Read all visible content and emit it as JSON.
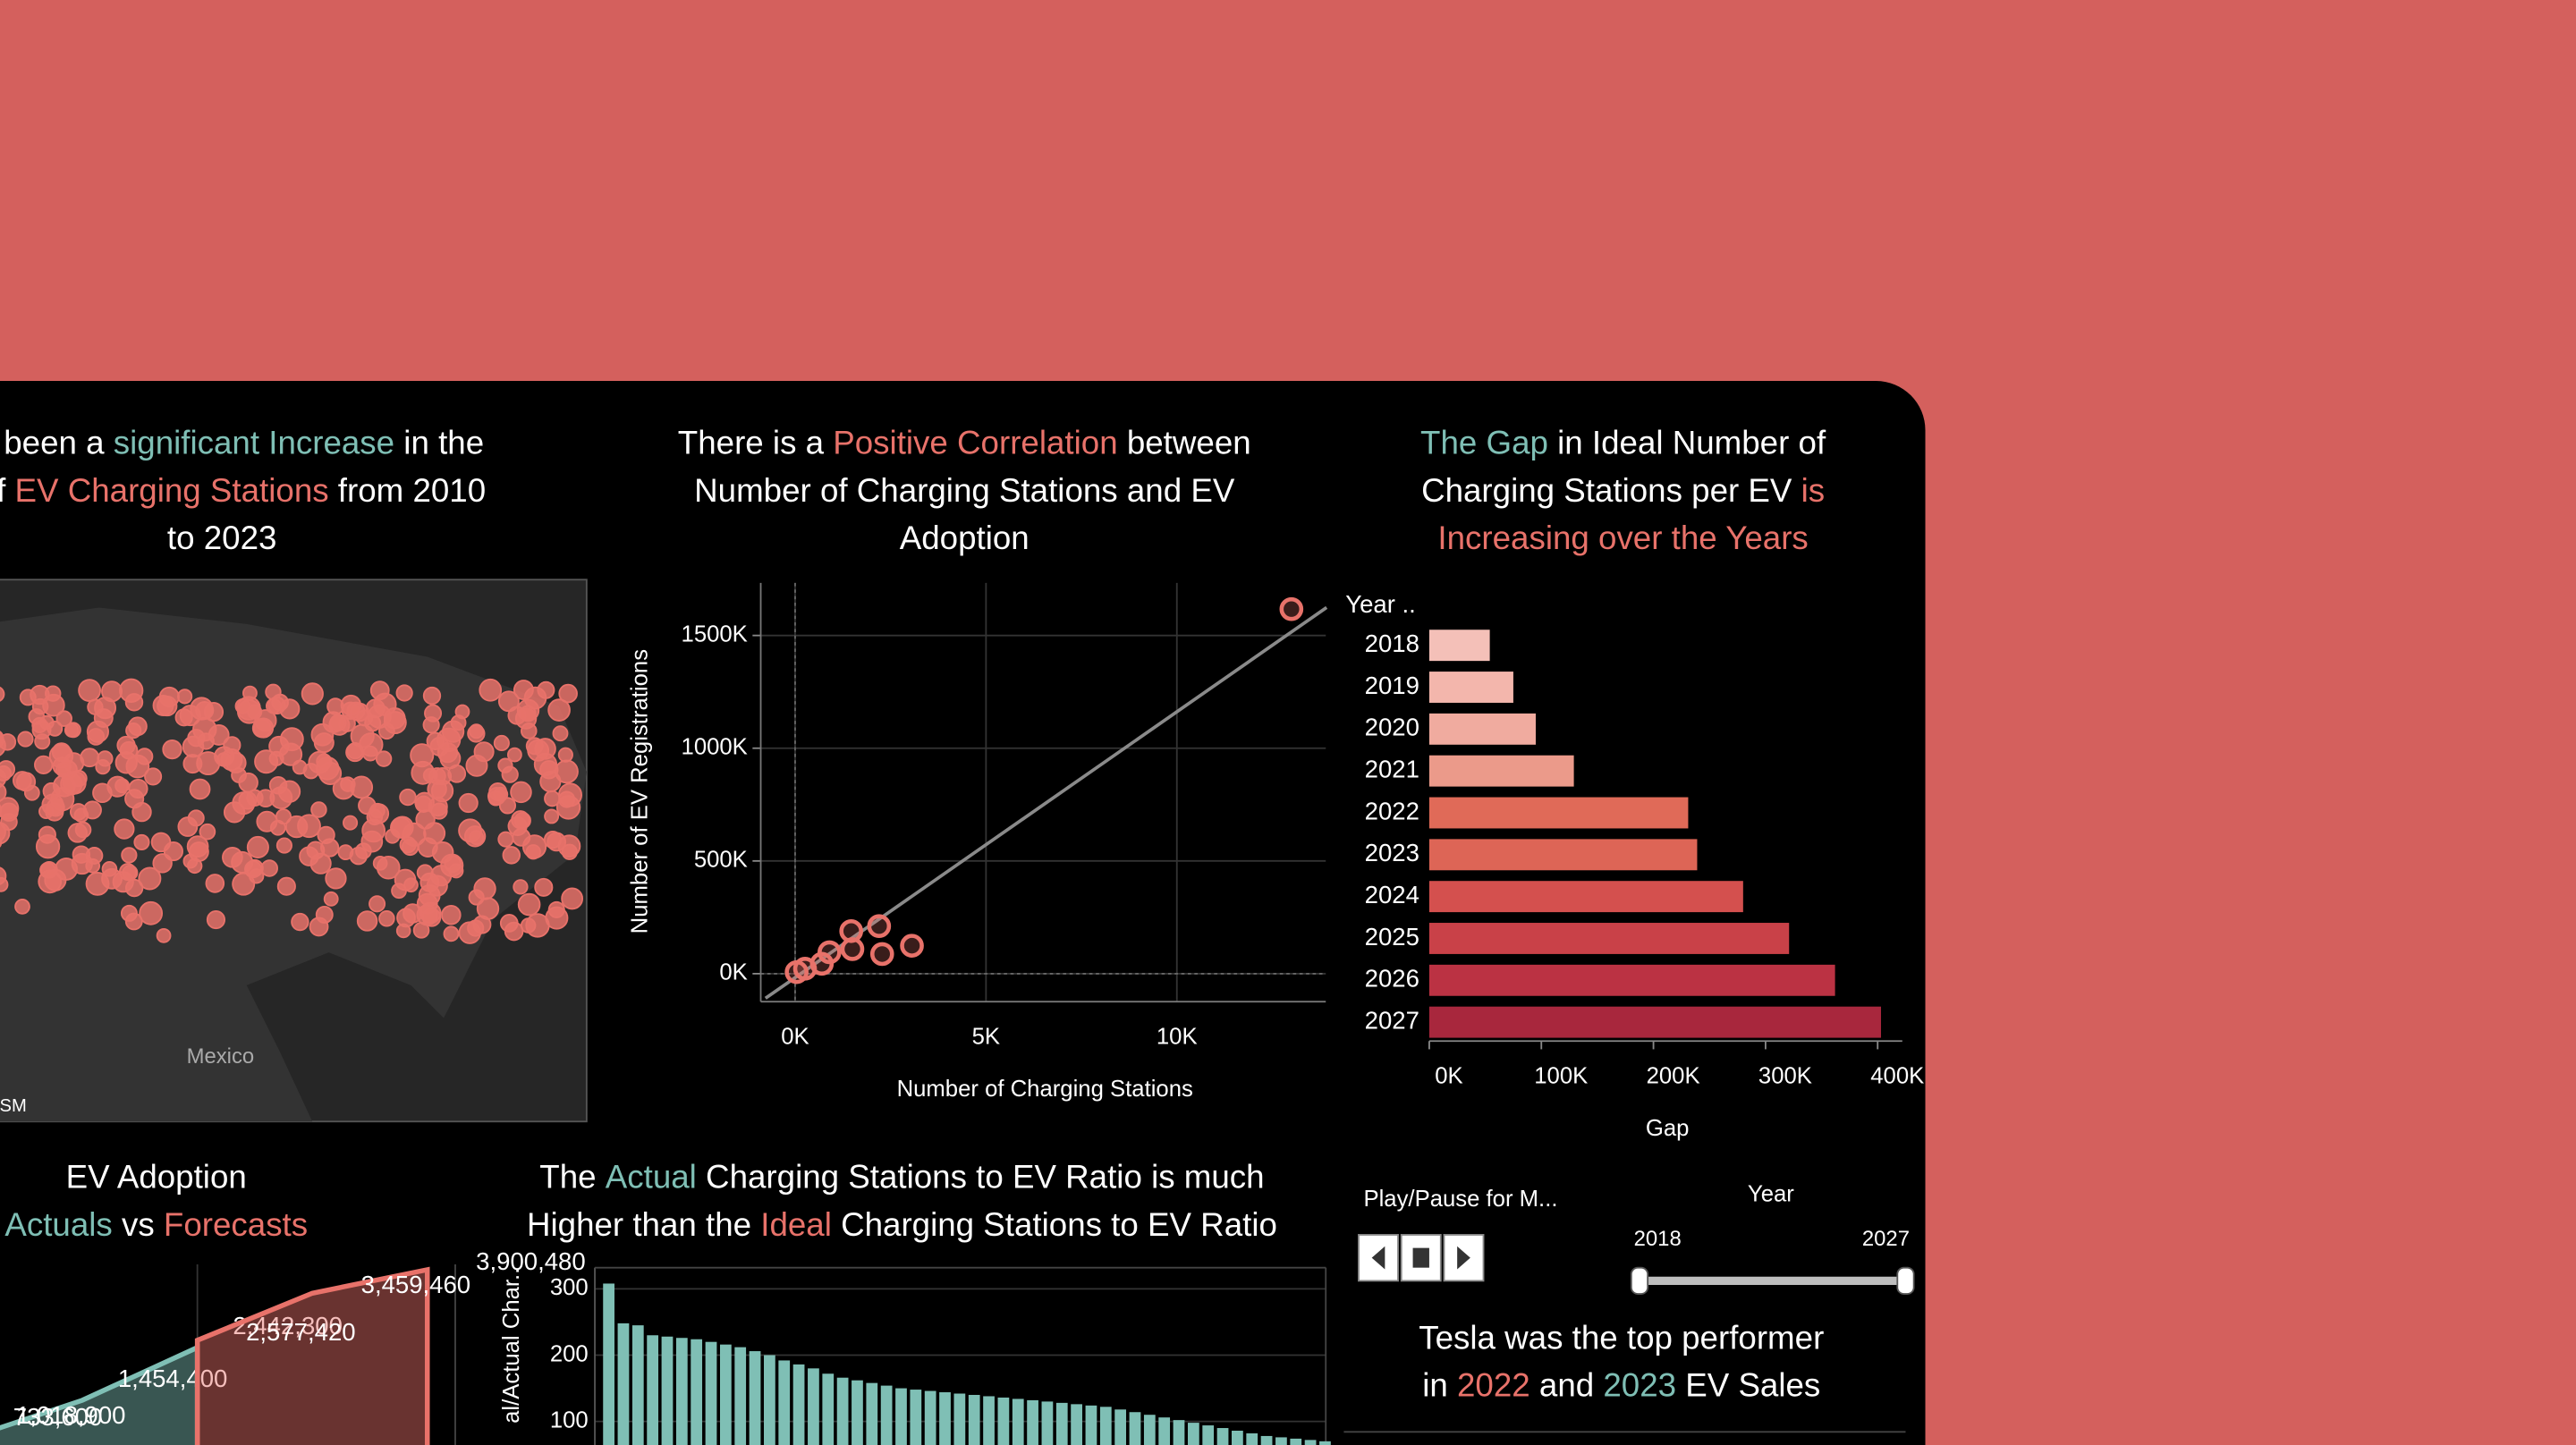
{
  "chart_data": [
    {
      "type": "map",
      "title_lines": [
        [
          {
            "text": "as been a ",
            "color": "#ffffff"
          },
          {
            "text": "significant Increase",
            "color": "#7fbfb5"
          },
          {
            "text": " in the",
            "color": "#ffffff"
          }
        ],
        [
          {
            "text": "r of ",
            "color": "#ffffff"
          },
          {
            "text": "EV Charging Stations",
            "color": "#e8726a"
          },
          {
            "text": " from 2010",
            "color": "#ffffff"
          }
        ],
        [
          {
            "text": "to 2023",
            "color": "#ffffff"
          }
        ]
      ],
      "labels": [
        "Mexico",
        "OSM"
      ],
      "color": "#e8726a"
    },
    {
      "type": "scatter",
      "title_lines": [
        [
          {
            "text": "There is a ",
            "color": "#ffffff"
          },
          {
            "text": "Positive Correlation",
            "color": "#e8726a"
          },
          {
            "text": " between",
            "color": "#ffffff"
          }
        ],
        [
          {
            "text": "Number of Charging Stations and EV",
            "color": "#ffffff"
          }
        ],
        [
          {
            "text": "Adoption",
            "color": "#ffffff"
          }
        ]
      ],
      "xlabel": "Number of Charging Stations",
      "ylabel": "Number of EV Registrations",
      "x": [
        13000,
        3060,
        2280,
        2200,
        1470,
        1500,
        900,
        700,
        260,
        40
      ],
      "y": [
        1617000,
        124000,
        87000,
        211000,
        189000,
        109000,
        95000,
        44000,
        22000,
        7000
      ],
      "color": "#e8726a",
      "xlim": [
        -900,
        13900
      ],
      "ylim": [
        -124000,
        1733000
      ],
      "xticks": [
        {
          "value": 0,
          "label": "0K"
        },
        {
          "value": 5000,
          "label": "5K"
        },
        {
          "value": 10000,
          "label": "10K"
        }
      ],
      "yticks": [
        {
          "value": 0,
          "label": "0K"
        },
        {
          "value": 500000,
          "label": "500K"
        },
        {
          "value": 1000000,
          "label": "1000K"
        },
        {
          "value": 1500000,
          "label": "1500K"
        }
      ],
      "grid": true,
      "trendline": {
        "x": [
          -776,
          13922
        ],
        "y": [
          -109000,
          1624000
        ],
        "color": "#8a8a8a"
      }
    },
    {
      "type": "barh",
      "title_lines": [
        [
          {
            "text": "The Gap",
            "color": "#7fbfb5"
          },
          {
            "text": " in Ideal Number of",
            "color": "#ffffff"
          }
        ],
        [
          {
            "text": "Charging Stations per EV ",
            "color": "#ffffff"
          },
          {
            "text": "is",
            "color": "#e8726a"
          }
        ],
        [
          {
            "text": "Increasing over the Years",
            "color": "#e8726a"
          }
        ]
      ],
      "category_header": "Year ..",
      "xlabel": "Gap",
      "categories": [
        "2018",
        "2019",
        "2020",
        "2021",
        "2022",
        "2023",
        "2024",
        "2025",
        "2026",
        "2027"
      ],
      "values": [
        54000,
        75000,
        95000,
        129000,
        231000,
        239000,
        280000,
        321000,
        362000,
        403000
      ],
      "colors": [
        "#f4c0b8",
        "#f3b6ac",
        "#f0ab9f",
        "#eb9a8a",
        "#e06a58",
        "#dd6556",
        "#d4504e",
        "#c94148",
        "#bb3243",
        "#a8273d"
      ],
      "xlim": [
        0,
        422000
      ],
      "xticks": [
        {
          "value": 0,
          "label": "0K"
        },
        {
          "value": 100000,
          "label": "100K"
        },
        {
          "value": 200000,
          "label": "200K"
        },
        {
          "value": 300000,
          "label": "300K"
        },
        {
          "value": 400000,
          "label": "400K"
        }
      ]
    },
    {
      "type": "area",
      "title_lines": [
        [
          {
            "text": "EV Adoption",
            "color": "#ffffff"
          }
        ],
        [
          {
            "text": "Actuals",
            "color": "#7fbfb5"
          },
          {
            "text": " vs ",
            "color": "#ffffff"
          },
          {
            "text": "Forecasts",
            "color": "#e8726a"
          }
        ]
      ],
      "categories": [
        null,
        null,
        null,
        null,
        null
      ],
      "series": [
        {
          "name": "Actuals",
          "color": "#7fbfb5",
          "values": [
            733600,
            1454400,
            2442300,
            null,
            null
          ],
          "value_labels": [
            "733,600",
            "1,454,400",
            "2,442,300",
            null,
            null
          ]
        },
        {
          "name": "Forecasts",
          "color": "#e8726a",
          "values": [
            1018900,
            null,
            2577420,
            3459460,
            3900480
          ],
          "value_labels": [
            "1,018,900",
            null,
            "2,577,420",
            "3,459,460",
            "3,900,480"
          ]
        }
      ],
      "ylim": [
        0,
        4000000
      ]
    },
    {
      "type": "bar",
      "title_lines": [
        [
          {
            "text": "The ",
            "color": "#ffffff"
          },
          {
            "text": "Actual",
            "color": "#7fbfb5"
          },
          {
            "text": " Charging Stations to EV Ratio is much",
            "color": "#ffffff"
          }
        ],
        [
          {
            "text": "Higher than the ",
            "color": "#ffffff"
          },
          {
            "text": "Ideal",
            "color": "#e8726a"
          },
          {
            "text": " Charging Stations to EV Ratio",
            "color": "#ffffff"
          }
        ]
      ],
      "ylabel": "al/Actual Char..",
      "categories": [
        null,
        null,
        null,
        null,
        null,
        null,
        null,
        null,
        null,
        null,
        null,
        null,
        null,
        null,
        null,
        null,
        null,
        null,
        null,
        null,
        null,
        null,
        null,
        null,
        null,
        null,
        null,
        null,
        null,
        null,
        null,
        null,
        null,
        null,
        null,
        null,
        null,
        null,
        null,
        null,
        null,
        null,
        null,
        null,
        null,
        null,
        null,
        null,
        null,
        null
      ],
      "values": [
        308,
        248,
        245,
        230,
        228,
        226,
        224,
        220,
        216,
        212,
        206,
        200,
        192,
        186,
        180,
        172,
        166,
        162,
        158,
        154,
        150,
        148,
        146,
        144,
        142,
        140,
        138,
        136,
        134,
        132,
        130,
        128,
        126,
        124,
        122,
        118,
        114,
        110,
        106,
        102,
        98,
        94,
        90,
        86,
        82,
        78,
        76,
        74,
        72,
        70
      ],
      "color": "#7fbfb5",
      "ylim": [
        0,
        332
      ],
      "yticks": [
        100,
        200,
        300
      ],
      "grid": true
    },
    {
      "type": "text",
      "title_lines": [
        [
          {
            "text": "Tesla was the top performer",
            "color": "#ffffff"
          }
        ],
        [
          {
            "text": "in ",
            "color": "#ffffff"
          },
          {
            "text": "2022",
            "color": "#e8726a"
          },
          {
            "text": " and ",
            "color": "#ffffff"
          },
          {
            "text": "2023",
            "color": "#7fbfb5"
          },
          {
            "text": " EV Sales",
            "color": "#ffffff"
          }
        ]
      ]
    }
  ],
  "controls": {
    "play_label": "Play/Pause for M...",
    "slider_label": "Year",
    "range_labels": [
      "2018",
      "2027"
    ]
  }
}
